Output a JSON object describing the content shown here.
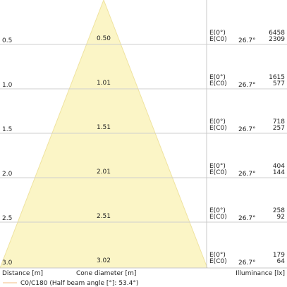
{
  "chart_data": {
    "type": "cone-diagram",
    "footer": {
      "distance_label": "Distance [m]",
      "diameter_label": "Cone diameter [m]",
      "illuminance_label": "Illuminance [lx]"
    },
    "legend": {
      "label": "C0/C180 (Half beam angle [°]: 53.4°)",
      "color": "#f5c99a"
    },
    "cone_fill": "#fbf5c6",
    "cone_stroke": "#efe3a0",
    "rows": [
      {
        "distance": "0.5",
        "diameter": "0.50",
        "label_top": "E(0°)",
        "label_bottom": "E(C0)",
        "angle": "26.7°",
        "value_top": "6458",
        "value_bottom": "2309"
      },
      {
        "distance": "1.0",
        "diameter": "1.01",
        "label_top": "E(0°)",
        "label_bottom": "E(C0)",
        "angle": "26.7°",
        "value_top": "1615",
        "value_bottom": "577"
      },
      {
        "distance": "1.5",
        "diameter": "1.51",
        "label_top": "E(0°)",
        "label_bottom": "E(C0)",
        "angle": "26.7°",
        "value_top": "718",
        "value_bottom": "257"
      },
      {
        "distance": "2.0",
        "diameter": "2.01",
        "label_top": "E(0°)",
        "label_bottom": "E(C0)",
        "angle": "26.7°",
        "value_top": "404",
        "value_bottom": "144"
      },
      {
        "distance": "2.5",
        "diameter": "2.51",
        "label_top": "E(0°)",
        "label_bottom": "E(C0)",
        "angle": "26.7°",
        "value_top": "258",
        "value_bottom": "92"
      },
      {
        "distance": "3.0",
        "diameter": "3.02",
        "label_top": "E(0°)",
        "label_bottom": "E(C0)",
        "angle": "26.7°",
        "value_top": "179",
        "value_bottom": "64"
      }
    ]
  }
}
